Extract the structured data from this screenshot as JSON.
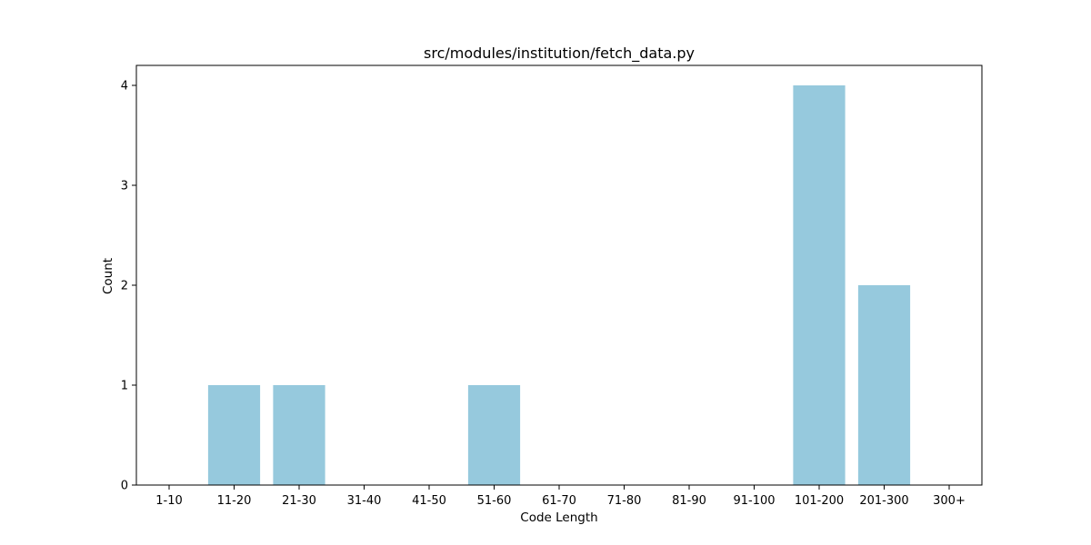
{
  "chart_data": {
    "type": "bar",
    "title": "src/modules/institution/fetch_data.py",
    "xlabel": "Code Length",
    "ylabel": "Count",
    "categories": [
      "1-10",
      "11-20",
      "21-30",
      "31-40",
      "41-50",
      "51-60",
      "61-70",
      "71-80",
      "81-90",
      "91-100",
      "101-200",
      "201-300",
      "300+"
    ],
    "values": [
      0,
      1,
      1,
      0,
      0,
      1,
      0,
      0,
      0,
      0,
      4,
      2,
      0
    ],
    "ylim": [
      0,
      4.2
    ],
    "yticks": [
      "0",
      "1",
      "2",
      "3",
      "4"
    ],
    "grid": false,
    "bar_color": "#96c9dd"
  }
}
